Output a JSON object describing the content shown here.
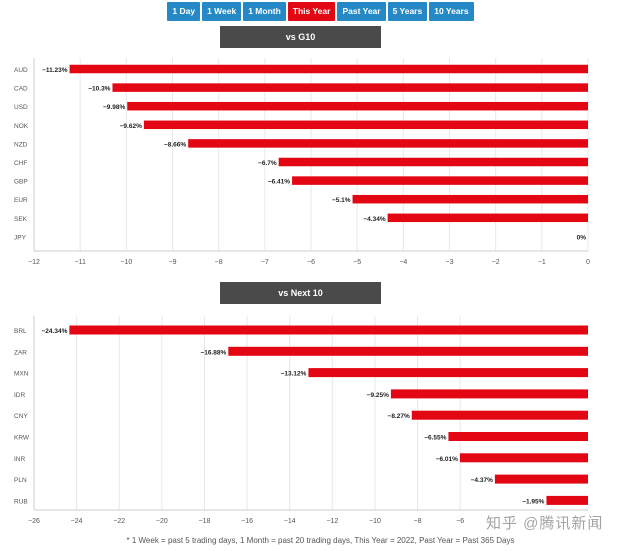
{
  "tabs": [
    {
      "label": "1 Day",
      "active": false
    },
    {
      "label": "1 Week",
      "active": false
    },
    {
      "label": "1 Month",
      "active": false
    },
    {
      "label": "This Year",
      "active": true
    },
    {
      "label": "Past Year",
      "active": false
    },
    {
      "label": "5 Years",
      "active": false
    },
    {
      "label": "10 Years",
      "active": false
    }
  ],
  "colors": {
    "tab": "#2689c7",
    "tab_active": "#e30613",
    "bar": "#e30613",
    "header": "#4a4a4a"
  },
  "footnote": "* 1 Week = past 5 trading days, 1 Month = past 20 trading days, This Year = 2022, Past Year = Past 365 Days",
  "watermark": "知乎 @腾讯新闻",
  "chart_data": [
    {
      "type": "bar",
      "orientation": "horizontal",
      "title": "vs G10",
      "categories": [
        "AUD",
        "CAD",
        "USD",
        "NOK",
        "NZD",
        "CHF",
        "GBP",
        "EUR",
        "SEK",
        "JPY"
      ],
      "values": [
        -11.23,
        -10.3,
        -9.98,
        -9.62,
        -8.66,
        -6.7,
        -6.41,
        -5.1,
        -4.34,
        0
      ],
      "labels": [
        "-11.23%",
        "-10.3%",
        "-9.98%",
        "-9.62%",
        "-8.66%",
        "-6.7%",
        "-6.41%",
        "-5.1%",
        "-4.34%",
        "0%"
      ],
      "xlim": [
        -12,
        0
      ],
      "xticks": [
        -12,
        -11,
        -10,
        -9,
        -8,
        -7,
        -6,
        -5,
        -4,
        -3,
        -2,
        -1,
        0
      ],
      "grid": true
    },
    {
      "type": "bar",
      "orientation": "horizontal",
      "title": "vs Next 10",
      "categories": [
        "BRL",
        "ZAR",
        "MXN",
        "IDR",
        "CNY",
        "KRW",
        "INR",
        "PLN",
        "RUB"
      ],
      "values": [
        -24.34,
        -16.88,
        -13.12,
        -9.25,
        -8.27,
        -6.55,
        -6.01,
        -4.37,
        -1.95
      ],
      "labels": [
        "-24.34%",
        "-16.88%",
        "-13.12%",
        "-9.25%",
        "-8.27%",
        "-6.55%",
        "-6.01%",
        "-4.37%",
        "-1.95%"
      ],
      "xlim": [
        -26,
        0
      ],
      "xticks": [
        -26,
        -24,
        -22,
        -20,
        -18,
        -16,
        -14,
        -12,
        -10,
        -8,
        -6
      ],
      "grid": true
    }
  ]
}
